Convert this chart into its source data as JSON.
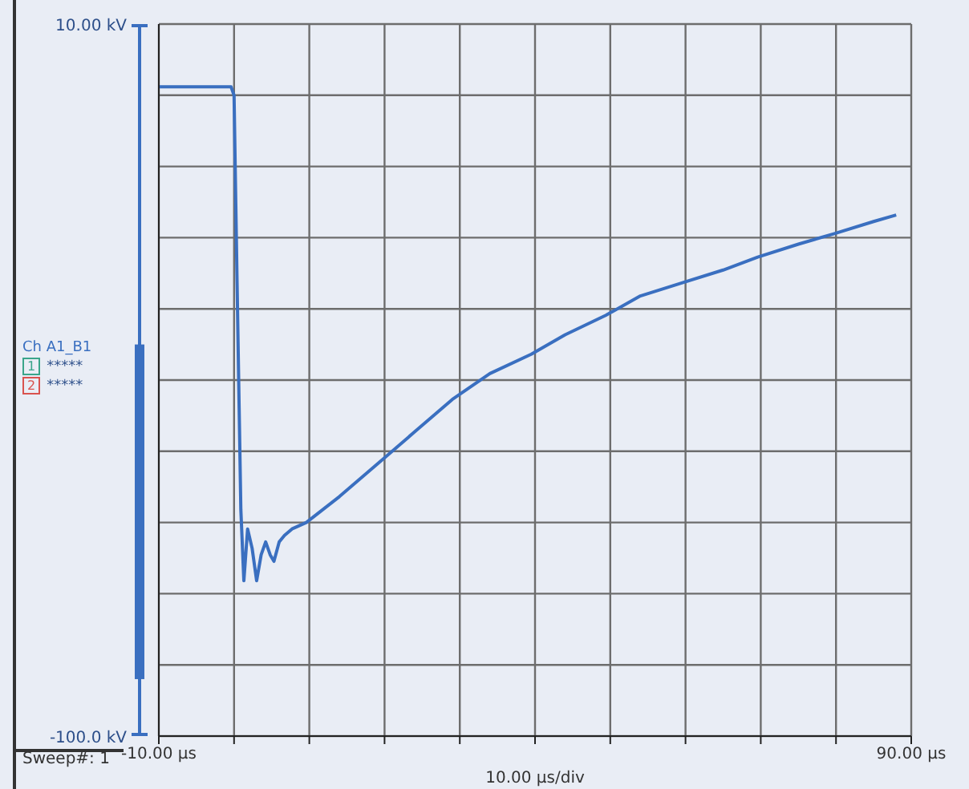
{
  "chart_data": {
    "type": "line",
    "xlabel": "10.00 µs/div",
    "legend": "left",
    "grid": true,
    "marker": "none",
    "line_style": "solid",
    "xlim": [
      -10,
      90
    ],
    "ylim": [
      -100,
      10
    ],
    "xticks": [
      {
        "value": -10,
        "label": "-10.00 µs"
      },
      {
        "value": 0,
        "label": null
      },
      {
        "value": 10,
        "label": null
      },
      {
        "value": 20,
        "label": null
      },
      {
        "value": 30,
        "label": null
      },
      {
        "value": 40,
        "label": null
      },
      {
        "value": 50,
        "label": null
      },
      {
        "value": 60,
        "label": null
      },
      {
        "value": 70,
        "label": null
      },
      {
        "value": 80,
        "label": null
      },
      {
        "value": 90,
        "label": "90.00 µs"
      }
    ],
    "yticks": [
      {
        "value": 10,
        "label": "10.00 kV"
      },
      {
        "value": -1,
        "label": null
      },
      {
        "value": -12,
        "label": null
      },
      {
        "value": -23,
        "label": null
      },
      {
        "value": -34,
        "label": null
      },
      {
        "value": -45,
        "label": null
      },
      {
        "value": -56,
        "label": null
      },
      {
        "value": -67,
        "label": null
      },
      {
        "value": -78,
        "label": null
      },
      {
        "value": -89,
        "label": null
      },
      {
        "value": -100,
        "label": "-100.0 kV"
      }
    ],
    "annotations": [
      "Sweep#: 1",
      "1",
      "*****",
      "2",
      "*****"
    ],
    "series": [
      {
        "name": "Ch A1_B1",
        "color": "#3a6fc0",
        "x": [
          -10,
          -0.4,
          0,
          0.4,
          0.9,
          1.3,
          1.8,
          2.4,
          3.0,
          3.6,
          4.2,
          4.8,
          5.3,
          6.0,
          6.7,
          7.7,
          9.6,
          14,
          19,
          24,
          29,
          34,
          39.5,
          44,
          49.4,
          54,
          59.5,
          65,
          69.6,
          75,
          79.7,
          85,
          88
        ],
        "values": [
          0.3,
          0.3,
          -1,
          -30,
          -65,
          -76,
          -68,
          -71,
          -76,
          -72,
          -70,
          -72,
          -73,
          -70,
          -69,
          -68,
          -67,
          -63,
          -58,
          -53,
          -48,
          -44,
          -41,
          -38,
          -35,
          -32,
          -30,
          -28,
          -26,
          -24,
          -22.4,
          -20.5,
          -19.5
        ]
      }
    ]
  }
}
